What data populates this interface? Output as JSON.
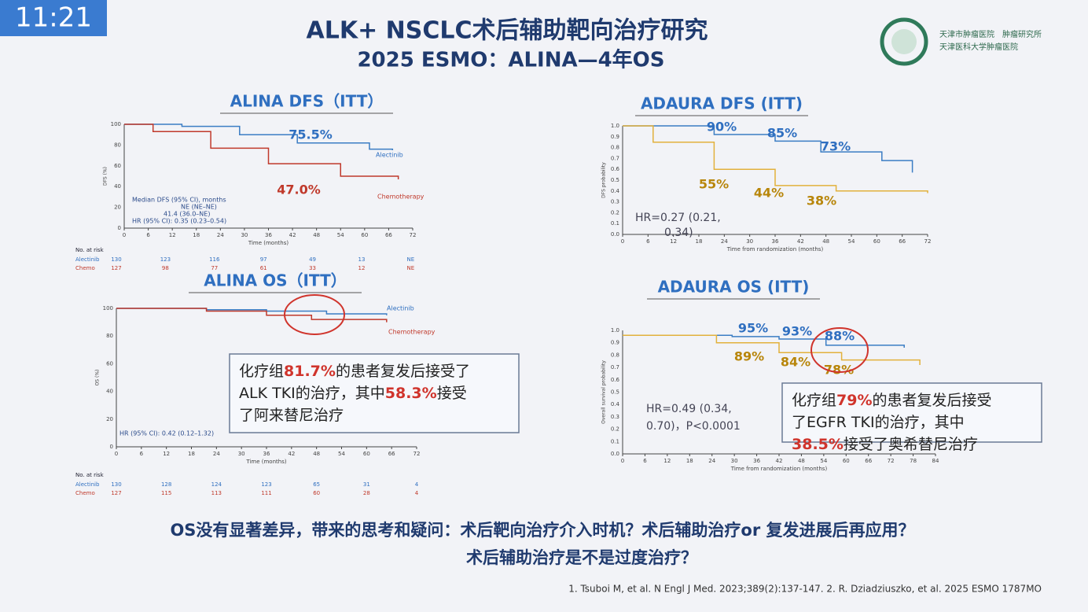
{
  "clock": "11:21",
  "header": {
    "title": "ALK+ NSCLC术后辅助靶向治疗研究",
    "subtitle": "2025 ESMO：ALINA—4年OS",
    "logo_lines": [
      "天津市肿瘤医院　肿瘤研究所",
      "天津医科大学肿瘤医院"
    ]
  },
  "panels": [
    {
      "title": "ALINA DFS（ITT）",
      "y_label": "DFS (%)",
      "x_label": "Time (months)",
      "yticks": [
        "100",
        "80",
        "60",
        "40",
        "20",
        "0"
      ],
      "xticks": [
        "0",
        "6",
        "12",
        "18",
        "24",
        "30",
        "36",
        "42",
        "48",
        "54",
        "60",
        "66",
        "72"
      ],
      "labels": [
        {
          "text": "75.5%",
          "red": false
        },
        {
          "text": "47.0%",
          "red": true
        }
      ],
      "legend": [
        "Alectinib",
        "Chemotherapy"
      ],
      "notes": [
        "Median DFS (95% CI), months",
        "NE (NE–NE)",
        "41.4 (36.0–NE)",
        "HR (95% CI): 0.35 (0.23–0.54)"
      ],
      "risk": {
        "title": "No. at risk",
        "rows": [
          [
            "Alectinib",
            "130",
            "123",
            "116",
            "97",
            "49",
            "13",
            "NE"
          ],
          [
            "Chemo",
            "127",
            "98",
            "77",
            "61",
            "33",
            "12",
            "NE"
          ]
        ]
      }
    },
    {
      "title": "ALINA OS（ITT）",
      "y_label": "OS (%)",
      "x_label": "Time (months)",
      "yticks": [
        "100",
        "80",
        "60",
        "40",
        "20",
        "0"
      ],
      "xticks": [
        "0",
        "6",
        "12",
        "18",
        "24",
        "30",
        "36",
        "42",
        "48",
        "54",
        "60",
        "66",
        "72"
      ],
      "labels": [],
      "legend": [
        "Alectinib",
        "Chemotherapy"
      ],
      "notes": [
        "HR (95% CI): 0.42 (0.12–1.32)"
      ],
      "risk": {
        "title": "No. at risk",
        "rows": [
          [
            "Alectinib",
            "130",
            "128",
            "124",
            "123",
            "65",
            "31",
            "4"
          ],
          [
            "Chemo",
            "127",
            "115",
            "113",
            "111",
            "60",
            "28",
            "4"
          ]
        ]
      },
      "callout": [
        [
          {
            "t": "化疗组",
            "red": false
          },
          {
            "t": "81.7%",
            "red": true
          },
          {
            "t": "的患者复发后接受了",
            "red": false
          }
        ],
        [
          {
            "t": "ALK TKI的治疗，其中",
            "red": false
          },
          {
            "t": "58.3%",
            "red": true
          },
          {
            "t": "接受",
            "red": false
          }
        ],
        [
          {
            "t": "了阿来替尼治疗",
            "red": false
          }
        ]
      ]
    },
    {
      "title": "ADAURA DFS (ITT)",
      "y_label": "DFS probability",
      "x_label": "Time from randomization (months)",
      "yticks": [
        "1.0",
        "0.9",
        "0.8",
        "0.7",
        "0.6",
        "0.5",
        "0.4",
        "0.3",
        "0.2",
        "0.1",
        "0.0"
      ],
      "xticks": [
        "0",
        "6",
        "12",
        "18",
        "24",
        "30",
        "36",
        "42",
        "48",
        "54",
        "60",
        "66",
        "72"
      ],
      "labels": [
        {
          "text": "90%",
          "red": false
        },
        {
          "text": "85%",
          "red": false
        },
        {
          "text": "73%",
          "red": false
        },
        {
          "text": "55%",
          "red": true
        },
        {
          "text": "44%",
          "red": true
        },
        {
          "text": "38%",
          "red": true
        }
      ],
      "legend": [],
      "notes": [
        "HR=0.27 (0.21,",
        "0.34)"
      ]
    },
    {
      "title": "ADAURA OS (ITT)",
      "y_label": "Overall survival probability",
      "x_label": "Time from randomization (months)",
      "yticks": [
        "1.0",
        "0.9",
        "0.8",
        "0.7",
        "0.6",
        "0.5",
        "0.4",
        "0.3",
        "0.2",
        "0.1",
        "0.0"
      ],
      "xticks": [
        "0",
        "6",
        "12",
        "18",
        "24",
        "30",
        "36",
        "42",
        "48",
        "54",
        "60",
        "66",
        "72",
        "78",
        "84"
      ],
      "labels": [
        {
          "text": "95%",
          "red": false
        },
        {
          "text": "93%",
          "red": false
        },
        {
          "text": "88%",
          "red": false
        },
        {
          "text": "89%",
          "red": true
        },
        {
          "text": "84%",
          "red": true
        },
        {
          "text": "78%",
          "red": true
        }
      ],
      "legend": [],
      "notes": [
        "HR=0.49 (0.34,",
        "0.70)，P<0.0001"
      ],
      "callout": [
        [
          {
            "t": "化疗组",
            "red": false
          },
          {
            "t": "79%",
            "red": true
          },
          {
            "t": "的患者复发后接受",
            "red": false
          }
        ],
        [
          {
            "t": "了EGFR TKI的治疗，其中",
            "red": false
          }
        ],
        [
          {
            "t": "38.5%",
            "red": true
          },
          {
            "t": "接受了奥希替尼治疗",
            "red": false
          }
        ]
      ]
    }
  ],
  "footer": {
    "question": [
      "OS没有显著差异，带来的思考和疑问：术后靶向治疗介入时机？术后辅助治疗or 复发进展后再应用？",
      "术后辅助治疗是不是过度治疗？"
    ],
    "reference": "1. Tsuboi M, et al. N Engl J Med. 2023;389(2):137-147. 2. R. Dziadziuszko, et al. 2025 ESMO 1787MO"
  }
}
